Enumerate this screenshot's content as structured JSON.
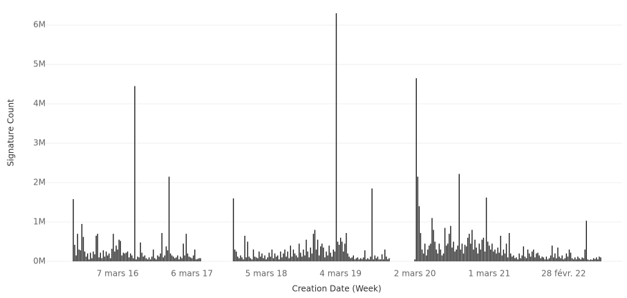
{
  "chart_data": {
    "type": "bar",
    "y_label": "Signature Count",
    "x_label": "Creation Date (Week)",
    "color": "#1a1a1a",
    "grid": true,
    "ylim": [
      0,
      6.46
    ],
    "yticks": [
      {
        "value": 0,
        "label": "0M"
      },
      {
        "value": 1,
        "label": "1M"
      },
      {
        "value": 2,
        "label": "2M"
      },
      {
        "value": 3,
        "label": "3M"
      },
      {
        "value": 4,
        "label": "4M"
      },
      {
        "value": 5,
        "label": "5M"
      },
      {
        "value": 6,
        "label": "6M"
      }
    ],
    "categories": [
      null,
      null,
      null,
      null,
      null,
      null,
      null,
      null,
      null,
      null,
      null,
      null,
      null,
      null,
      null,
      null,
      null,
      null,
      null,
      null,
      null,
      null,
      null,
      null,
      null,
      null,
      null,
      null,
      null,
      null,
      null,
      "7 mars 16",
      null,
      null,
      null,
      null,
      null,
      null,
      null,
      null,
      null,
      null,
      null,
      null,
      null,
      null,
      null,
      null,
      null,
      null,
      null,
      null,
      null,
      null,
      null,
      null,
      null,
      null,
      null,
      null,
      null,
      null,
      null,
      null,
      null,
      null,
      null,
      null,
      null,
      null,
      null,
      null,
      null,
      null,
      null,
      null,
      null,
      null,
      null,
      null,
      null,
      null,
      null,
      "6 mars 17",
      null,
      null,
      null,
      null,
      null,
      null,
      null,
      null,
      null,
      null,
      null,
      null,
      null,
      null,
      null,
      null,
      null,
      null,
      null,
      null,
      null,
      null,
      null,
      null,
      null,
      null,
      null,
      null,
      null,
      null,
      null,
      null,
      null,
      null,
      null,
      null,
      null,
      null,
      null,
      null,
      null,
      null,
      null,
      null,
      null,
      null,
      null,
      null,
      null,
      null,
      null,
      "5 mars 18",
      null,
      null,
      null,
      null,
      null,
      null,
      null,
      null,
      null,
      null,
      null,
      null,
      null,
      null,
      null,
      null,
      null,
      null,
      null,
      null,
      null,
      null,
      null,
      null,
      null,
      null,
      null,
      null,
      null,
      null,
      null,
      null,
      null,
      null,
      null,
      null,
      null,
      null,
      null,
      null,
      null,
      null,
      null,
      null,
      null,
      null,
      null,
      null,
      null,
      null,
      null,
      "4 mars 19",
      null,
      null,
      null,
      null,
      null,
      null,
      null,
      null,
      null,
      null,
      null,
      null,
      null,
      null,
      null,
      null,
      null,
      null,
      null,
      null,
      null,
      null,
      null,
      null,
      null,
      null,
      null,
      null,
      null,
      null,
      null,
      null,
      null,
      null,
      null,
      null,
      null,
      null,
      null,
      null,
      null,
      null,
      null,
      null,
      null,
      null,
      null,
      null,
      null,
      null,
      null,
      "2 mars 20",
      null,
      null,
      null,
      null,
      null,
      null,
      null,
      null,
      null,
      null,
      null,
      null,
      null,
      null,
      null,
      null,
      null,
      null,
      null,
      null,
      null,
      null,
      null,
      null,
      null,
      null,
      null,
      null,
      null,
      null,
      null,
      null,
      null,
      null,
      null,
      null,
      null,
      null,
      null,
      null,
      null,
      null,
      null,
      null,
      null,
      null,
      null,
      null,
      null,
      null,
      null,
      "1 mars 21",
      null,
      null,
      null,
      null,
      null,
      null,
      null,
      null,
      null,
      null,
      null,
      null,
      null,
      null,
      null,
      null,
      null,
      null,
      null,
      null,
      null,
      null,
      null,
      null,
      null,
      null,
      null,
      null,
      null,
      null,
      null,
      null,
      null,
      null,
      null,
      null,
      null,
      null,
      null,
      null,
      null,
      null,
      null,
      null,
      null,
      null,
      null,
      null,
      null,
      null,
      null,
      "28 févr. 22",
      null,
      null,
      null,
      null,
      null,
      null,
      null,
      null,
      null,
      null,
      null,
      null,
      null,
      null,
      null,
      null,
      null,
      null,
      null,
      null,
      null,
      null,
      null,
      null,
      null,
      null
    ],
    "values": [
      1.58,
      0.42,
      0.15,
      0.7,
      0.3,
      0.28,
      0.95,
      0.62,
      0.25,
      0.12,
      0.2,
      0.05,
      0.22,
      0.08,
      0.25,
      0.18,
      0.65,
      0.7,
      0.1,
      0.22,
      0.08,
      0.28,
      0.12,
      0.25,
      0.15,
      0.2,
      0.08,
      0.32,
      0.7,
      0.25,
      0.4,
      0.3,
      0.55,
      0.52,
      0.15,
      0.22,
      0.2,
      0.22,
      0.25,
      0.1,
      0.2,
      0.15,
      0.08,
      4.45,
      0.05,
      0.12,
      0.1,
      0.48,
      0.22,
      0.12,
      0.15,
      0.08,
      0.05,
      0.1,
      0.05,
      0.12,
      0.3,
      0.08,
      0.05,
      0.15,
      0.12,
      0.2,
      0.72,
      0.1,
      0.15,
      0.38,
      0.28,
      2.15,
      0.2,
      0.15,
      0.12,
      0.08,
      0.1,
      0.15,
      0.05,
      0.12,
      0.08,
      0.45,
      0.15,
      0.7,
      0.2,
      0.12,
      0.1,
      0.08,
      0.15,
      0.3,
      0.05,
      0.06,
      0.08,
      0.08,
      null,
      null,
      null,
      null,
      null,
      null,
      null,
      null,
      null,
      null,
      null,
      null,
      null,
      null,
      null,
      null,
      null,
      null,
      null,
      null,
      null,
      null,
      1.6,
      0.3,
      0.25,
      0.12,
      0.08,
      0.15,
      0.1,
      0.05,
      0.65,
      0.1,
      0.5,
      0.12,
      0.08,
      0.05,
      0.3,
      0.12,
      0.1,
      0.08,
      0.25,
      0.12,
      0.2,
      0.08,
      0.15,
      0.05,
      0.1,
      0.22,
      0.12,
      0.3,
      0.08,
      0.2,
      0.12,
      0.15,
      0.05,
      0.25,
      0.1,
      0.2,
      0.3,
      0.12,
      0.25,
      0.08,
      0.4,
      0.12,
      0.3,
      0.2,
      0.15,
      0.1,
      0.45,
      0.22,
      0.12,
      0.3,
      0.15,
      0.55,
      0.25,
      0.1,
      0.35,
      0.2,
      0.7,
      0.8,
      0.3,
      0.55,
      0.15,
      0.38,
      0.45,
      0.35,
      0.1,
      0.25,
      0.15,
      0.4,
      0.22,
      0.12,
      0.3,
      0.25,
      6.3,
      0.5,
      0.42,
      0.6,
      0.5,
      0.25,
      0.45,
      0.72,
      0.2,
      0.12,
      0.08,
      0.1,
      0.15,
      0.05,
      0.08,
      0.1,
      0.05,
      0.08,
      0.06,
      0.1,
      0.28,
      0.05,
      0.08,
      0.05,
      0.12,
      1.85,
      0.05,
      0.15,
      0.08,
      0.12,
      0.05,
      0.05,
      0.18,
      0.05,
      0.3,
      0.12,
      0.05,
      0.08,
      null,
      null,
      null,
      null,
      null,
      null,
      null,
      null,
      null,
      null,
      null,
      null,
      null,
      null,
      null,
      null,
      null,
      0.05,
      4.65,
      2.15,
      1.4,
      0.72,
      0.3,
      0.2,
      0.45,
      0.15,
      0.3,
      0.4,
      0.45,
      1.1,
      0.8,
      0.5,
      0.3,
      0.2,
      0.45,
      0.3,
      0.15,
      0.2,
      0.85,
      0.4,
      0.45,
      0.7,
      0.9,
      0.35,
      0.5,
      0.25,
      0.3,
      0.4,
      2.22,
      0.3,
      0.45,
      0.2,
      0.42,
      0.38,
      0.6,
      0.7,
      0.45,
      0.8,
      0.3,
      0.55,
      0.35,
      0.2,
      0.45,
      0.3,
      0.55,
      0.6,
      0.25,
      1.62,
      0.5,
      0.4,
      0.3,
      0.45,
      0.25,
      0.3,
      0.2,
      0.35,
      0.22,
      0.65,
      0.15,
      0.3,
      0.2,
      0.45,
      0.1,
      0.72,
      0.2,
      0.12,
      0.15,
      0.08,
      0.1,
      0.05,
      0.2,
      0.08,
      0.15,
      0.38,
      0.12,
      0.08,
      0.3,
      0.2,
      0.12,
      0.25,
      0.3,
      0.1,
      0.2,
      0.22,
      0.15,
      0.08,
      0.12,
      0.1,
      0.05,
      0.12,
      0.05,
      0.08,
      0.15,
      0.4,
      0.1,
      0.2,
      0.08,
      0.35,
      0.12,
      0.08,
      0.15,
      0.05,
      0.08,
      0.2,
      0.12,
      0.3,
      0.22,
      0.08,
      0.05,
      0.1,
      0.05,
      0.12,
      0.08,
      0.05,
      0.1,
      0.08,
      0.3,
      1.03,
      0.05,
      0.03,
      0.05,
      0.04,
      0.08,
      0.06,
      0.1,
      0.05,
      0.12,
      0.1
    ]
  }
}
